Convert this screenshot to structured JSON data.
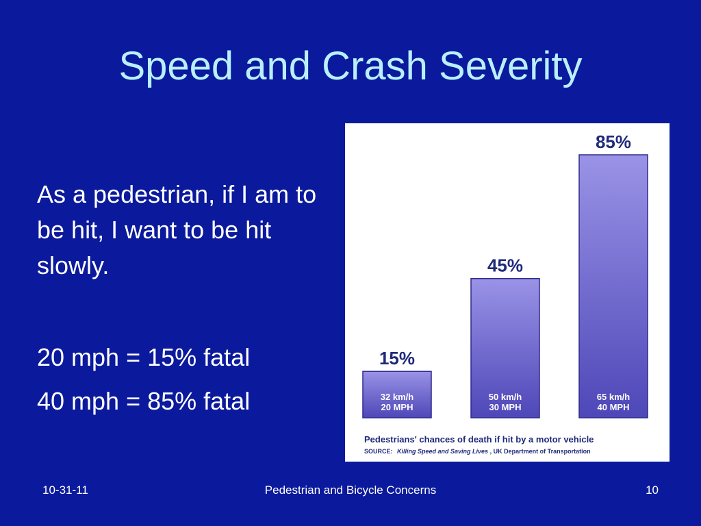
{
  "slide": {
    "title": "Speed and Crash Severity",
    "paragraph": "As a pedestrian, if I am to be hit, I want to be hit slowly.",
    "stat_lines": [
      "20 mph = 15% fatal",
      "40 mph = 85% fatal"
    ],
    "footer": {
      "date": "10-31-11",
      "center": "Pedestrian and Bicycle Concerns",
      "page": "10"
    }
  },
  "colors": {
    "background": "#0b1a9c",
    "title": "#b9f0ff",
    "bar_light": "#9a93e6",
    "bar_dark": "#4e47b8",
    "bar_edge": "#2f2a8c",
    "chart_text": "#1f2a7a"
  },
  "chart_data": {
    "type": "bar",
    "categories": [
      [
        "32 km/h",
        "20 MPH"
      ],
      [
        "50 km/h",
        "30 MPH"
      ],
      [
        "65 km/h",
        "40 MPH"
      ]
    ],
    "values": [
      15,
      45,
      85
    ],
    "data_labels": [
      "15%",
      "45%",
      "85%"
    ],
    "ylim": [
      0,
      85
    ],
    "grid": false,
    "caption": "Pedestrians' chances of death if hit by a motor vehicle",
    "source_label": "SOURCE:",
    "source_title": "Killing Speed and Saving Lives",
    "source_rest": ", UK Department of Transportation"
  }
}
